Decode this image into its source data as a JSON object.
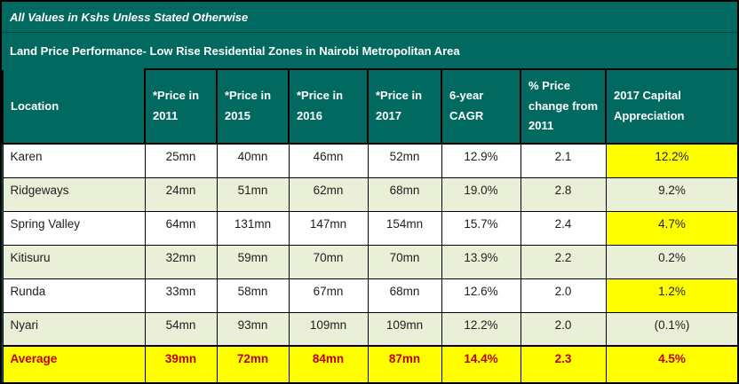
{
  "banner": {
    "note": "All Values in Kshs Unless Stated Otherwise",
    "title": "Land Price Performance- Low Rise Residential Zones in Nairobi Metropolitan Area"
  },
  "table": {
    "columns": [
      "Location",
      "*Price in 2011",
      "*Price in 2015",
      "*Price in 2016",
      "*Price in 2017",
      "6-year CAGR",
      "% Price change from 2011",
      "2017 Capital Appreciation"
    ],
    "rows": [
      [
        "Karen",
        "25mn",
        "40mn",
        "46mn",
        "52mn",
        "12.9%",
        "2.1",
        "12.2%"
      ],
      [
        "Ridgeways",
        "24mn",
        "51mn",
        "62mn",
        "68mn",
        "19.0%",
        "2.8",
        "9.2%"
      ],
      [
        "Spring Valley",
        "64mn",
        "131mn",
        "147mn",
        "154mn",
        "15.7%",
        "2.4",
        "4.7%"
      ],
      [
        "Kitisuru",
        "32mn",
        "59mn",
        "70mn",
        "70mn",
        "13.9%",
        "2.2",
        "0.2%"
      ],
      [
        "Runda",
        "33mn",
        "58mn",
        "67mn",
        "68mn",
        "12.6%",
        "2.0",
        "1.2%"
      ],
      [
        "Nyari",
        "54mn",
        "93mn",
        "109mn",
        "109mn",
        "12.2%",
        "2.0",
        "(0.1%)"
      ]
    ],
    "average": {
      "label": "Average",
      "values": [
        "39mn",
        "72mn",
        "84mn",
        "87mn",
        "14.4%",
        "2.3",
        "4.5%"
      ]
    }
  },
  "colors": {
    "teal_header": "#026960",
    "zebra_green": "#eaefd8",
    "highlight_yellow": "#ffff00",
    "average_red": "#c00000",
    "body_text": "#1e1e1e",
    "header_text": "#ffffff"
  }
}
